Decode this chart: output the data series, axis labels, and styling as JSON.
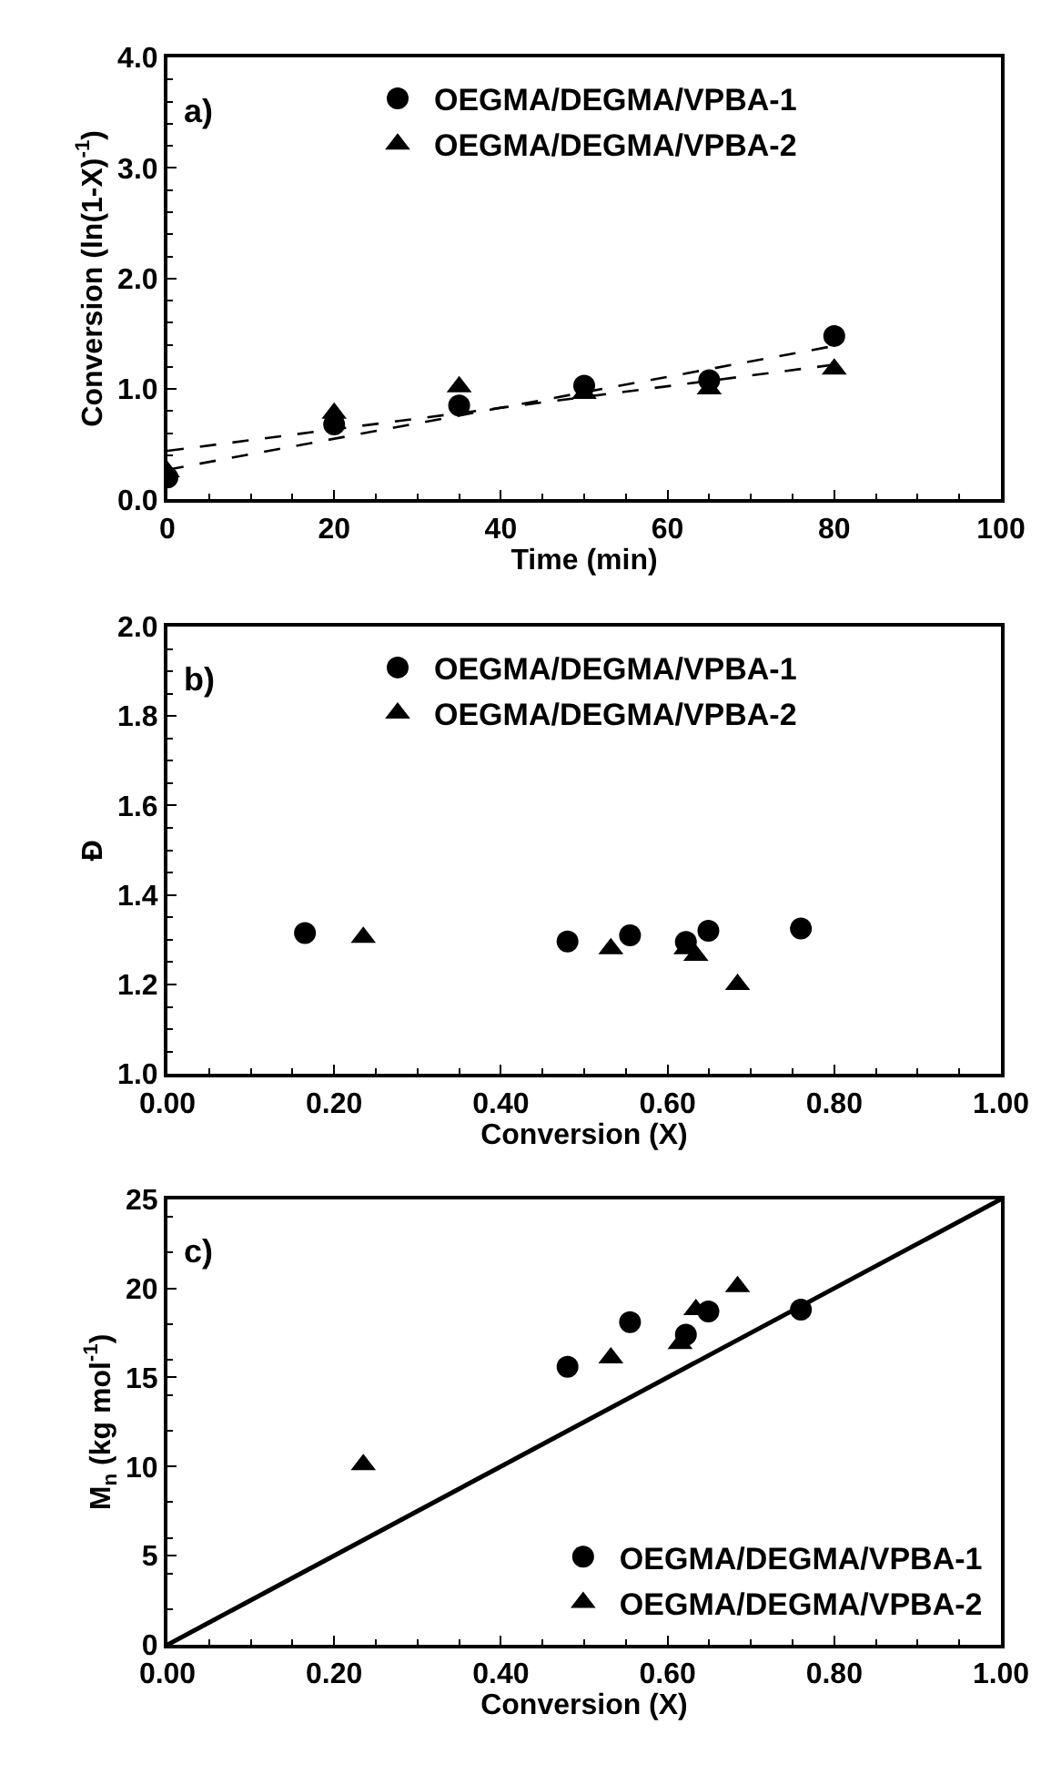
{
  "chart_data": [
    {
      "type": "scatter",
      "xlabel": "Time (min)",
      "ylabel": "Conversion (ln(1-X)$^{-1}$)",
      "annotations": [
        "a)"
      ],
      "xlim": [
        0,
        100
      ],
      "xticks": [
        0,
        20,
        40,
        60,
        80,
        100
      ],
      "ylim": [
        0,
        4
      ],
      "yticks": [
        {
          "value": 0,
          "label": "0.0"
        },
        {
          "value": 1,
          "label": "1.0"
        },
        {
          "value": 2,
          "label": "2.0"
        },
        {
          "value": 3,
          "label": "3.0"
        },
        {
          "value": 4,
          "label": "4.0"
        }
      ],
      "grid": false,
      "legend": "top",
      "series": [
        {
          "name": "OEGMA/DEGMA/VPBA-1",
          "color": "#000000",
          "marker": "circle",
          "x": [
            0,
            20,
            35,
            50,
            65,
            80
          ],
          "values": [
            0.2,
            0.68,
            0.85,
            1.03,
            1.08,
            1.48
          ]
        },
        {
          "name": "OEGMA/DEGMA/VPBA-2",
          "color": "#000000",
          "marker": "triangle",
          "x": [
            0,
            20,
            35,
            50,
            65,
            80
          ],
          "values": [
            0.25,
            0.78,
            1.02,
            0.96,
            1.0,
            1.18
          ]
        },
        {
          "type": "line",
          "color": "#000000",
          "line_style": "dashed",
          "marker": "none",
          "x": [
            0,
            80
          ],
          "values": [
            0.27,
            1.39
          ]
        },
        {
          "type": "line",
          "color": "#000000",
          "line_style": "dashed",
          "marker": "none",
          "x": [
            0,
            80
          ],
          "values": [
            0.44,
            1.22
          ]
        }
      ]
    },
    {
      "type": "scatter",
      "xlabel": "Conversion (X)",
      "ylabel": "Đ",
      "annotations": [
        "b)"
      ],
      "xlim": [
        0,
        1
      ],
      "xticks": [
        {
          "value": 0,
          "label": "0.00"
        },
        {
          "value": 0.2,
          "label": "0.20"
        },
        {
          "value": 0.4,
          "label": "0.40"
        },
        {
          "value": 0.6,
          "label": "0.60"
        },
        {
          "value": 0.8,
          "label": "0.80"
        },
        {
          "value": 1,
          "label": "1.00"
        }
      ],
      "ylim": [
        1,
        2
      ],
      "yticks": [
        {
          "value": 1,
          "label": "1.0"
        },
        1.2,
        1.4,
        1.6,
        1.8,
        {
          "value": 2,
          "label": "2.0"
        }
      ],
      "grid": false,
      "legend": "top",
      "series": [
        {
          "name": "OEGMA/DEGMA/VPBA-1",
          "color": "#000000",
          "marker": "circle",
          "x": [
            0.165,
            0.48,
            0.555,
            0.622,
            0.649,
            0.76
          ],
          "values": [
            1.315,
            1.296,
            1.31,
            1.295,
            1.32,
            1.325
          ]
        },
        {
          "name": "OEGMA/DEGMA/VPBA-2",
          "color": "#000000",
          "marker": "triangle",
          "x": [
            0.235,
            0.532,
            0.622,
            0.634,
            0.684
          ],
          "values": [
            1.305,
            1.28,
            1.28,
            1.265,
            1.2
          ]
        }
      ]
    },
    {
      "type": "scatter",
      "xlabel": "Conversion (X)",
      "ylabel": "M$_{n}$ (kg mol$^{-1}$)",
      "annotations": [
        "c)"
      ],
      "xlim": [
        0,
        1
      ],
      "xticks": [
        {
          "value": 0,
          "label": "0.00"
        },
        {
          "value": 0.2,
          "label": "0.20"
        },
        {
          "value": 0.4,
          "label": "0.40"
        },
        {
          "value": 0.6,
          "label": "0.60"
        },
        {
          "value": 0.8,
          "label": "0.80"
        },
        {
          "value": 1,
          "label": "1.00"
        }
      ],
      "ylim": [
        0,
        25
      ],
      "yticks": [
        0,
        5,
        10,
        15,
        20,
        25
      ],
      "grid": false,
      "legend": "bottom right",
      "series": [
        {
          "name": "OEGMA/DEGMA/VPBA-1",
          "color": "#000000",
          "marker": "circle",
          "x": [
            0.48,
            0.555,
            0.622,
            0.649,
            0.76
          ],
          "values": [
            15.6,
            18.1,
            17.4,
            18.7,
            18.8
          ]
        },
        {
          "name": "OEGMA/DEGMA/VPBA-2",
          "color": "#000000",
          "marker": "triangle",
          "x": [
            0.235,
            0.532,
            0.615,
            0.634,
            0.684
          ],
          "values": [
            10.1,
            16.1,
            16.9,
            18.8,
            20.1
          ]
        },
        {
          "type": "line",
          "color": "#000000",
          "line_style": "solid",
          "marker": "none",
          "x": [
            0,
            1
          ],
          "values": [
            0,
            25
          ]
        }
      ]
    }
  ]
}
